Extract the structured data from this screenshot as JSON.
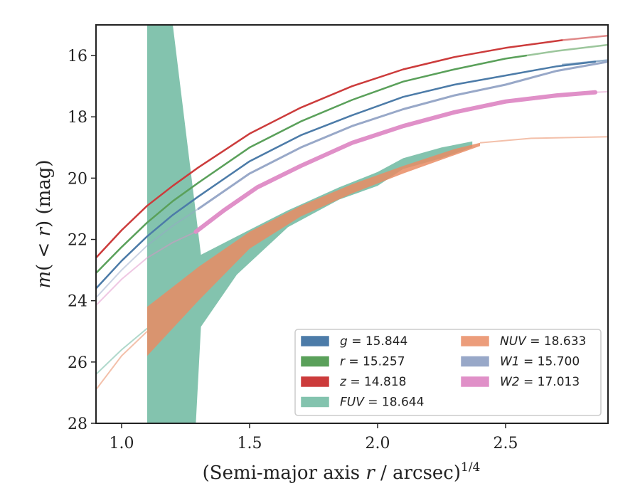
{
  "chart_data": {
    "type": "line",
    "xlabel": "(Semi-major axis r / arcsec)^{1/4}",
    "xlabel_parts": {
      "pre": "(Semi-major axis ",
      "italic": "r",
      "post": " / arcsec)",
      "sup": "1/4"
    },
    "ylabel": "m(<r) (mag)",
    "ylabel_parts": {
      "m": "m",
      "open": "(",
      "lt": " < ",
      "r": "r",
      "close": ")",
      "unit": " (mag)"
    },
    "xlim": [
      0.9,
      2.9
    ],
    "ylim": [
      28,
      15
    ],
    "y_inverted": true,
    "x_ticks": [
      1.0,
      1.5,
      2.0,
      2.5
    ],
    "x_tick_labels": [
      "1.0",
      "1.5",
      "2.0",
      "2.5"
    ],
    "y_ticks": [
      16,
      18,
      20,
      22,
      24,
      26,
      28
    ],
    "y_tick_labels": [
      "16",
      "18",
      "20",
      "22",
      "24",
      "26",
      "28"
    ],
    "grid": false,
    "legend_position": "bottom-right",
    "legend_columns": 2,
    "series": [
      {
        "name": "g = 15.844",
        "legend_symbol": "g",
        "legend_value": "15.844",
        "color": "#4c7ba8",
        "kind": "line",
        "width": 2.5,
        "x": [
          0.9,
          1.0,
          1.1,
          1.2,
          1.3,
          1.5,
          1.7,
          1.9,
          2.1,
          2.3,
          2.5,
          2.7,
          2.85
        ],
        "y": [
          23.6,
          22.7,
          21.9,
          21.2,
          20.6,
          19.45,
          18.6,
          17.95,
          17.35,
          16.95,
          16.65,
          16.35,
          16.2
        ],
        "faded_from": 2.72,
        "x_ext": [
          2.72,
          2.9
        ],
        "y_ext": [
          16.3,
          16.15
        ]
      },
      {
        "name": "r = 15.257",
        "legend_symbol": "r",
        "legend_value": "15.257",
        "color": "#5aa05a",
        "kind": "line",
        "width": 2.5,
        "x": [
          0.9,
          1.0,
          1.1,
          1.2,
          1.3,
          1.5,
          1.7,
          1.9,
          2.1,
          2.3,
          2.5,
          2.58
        ],
        "y": [
          23.1,
          22.25,
          21.45,
          20.75,
          20.15,
          19.0,
          18.15,
          17.45,
          16.85,
          16.45,
          16.1,
          16.0
        ],
        "faded_from": 2.58,
        "x_ext": [
          2.58,
          2.7,
          2.9
        ],
        "y_ext": [
          16.0,
          15.85,
          15.65
        ]
      },
      {
        "name": "z = 14.818",
        "legend_symbol": "z",
        "legend_value": "14.818",
        "color": "#cc3b3b",
        "kind": "line",
        "width": 2.5,
        "x": [
          0.9,
          1.0,
          1.1,
          1.2,
          1.3,
          1.5,
          1.7,
          1.9,
          2.1,
          2.3,
          2.5,
          2.72
        ],
        "y": [
          22.6,
          21.7,
          20.9,
          20.25,
          19.65,
          18.55,
          17.7,
          17.0,
          16.45,
          16.05,
          15.75,
          15.5
        ],
        "faded_from": 2.72,
        "x_ext": [
          2.72,
          2.9
        ],
        "y_ext": [
          15.5,
          15.35
        ]
      },
      {
        "name": "FUV = 18.644",
        "legend_symbol": "FUV",
        "legend_value": "18.644",
        "color": "#6db8a0",
        "kind": "band",
        "opacity": 0.85,
        "x_upper": [
          1.1,
          1.1,
          1.2,
          1.31,
          1.45,
          1.65,
          1.85,
          2.0,
          2.1,
          2.25,
          2.37
        ],
        "y_upper": [
          15.0,
          15.0,
          15.0,
          22.5,
          21.9,
          21.05,
          20.3,
          19.8,
          19.35,
          19.0,
          18.8
        ],
        "x_lower": [
          2.37,
          2.25,
          2.1,
          2.0,
          1.85,
          1.65,
          1.45,
          1.31,
          1.29,
          1.1
        ],
        "y_lower": [
          19.0,
          19.35,
          19.7,
          20.25,
          20.7,
          21.6,
          23.15,
          24.85,
          28.0,
          28.0
        ],
        "faded_x": [
          0.9,
          1.0,
          1.1
        ],
        "faded_y": [
          26.4,
          25.6,
          24.9
        ]
      },
      {
        "name": "NUV = 18.633",
        "legend_symbol": "NUV",
        "legend_value": "18.633",
        "color": "#e98c64",
        "kind": "band",
        "opacity": 0.85,
        "x_upper": [
          1.1,
          1.3,
          1.5,
          1.7,
          1.9,
          2.1,
          2.3,
          2.4
        ],
        "y_upper": [
          24.2,
          22.9,
          21.75,
          20.9,
          20.2,
          19.6,
          19.05,
          18.85
        ],
        "x_lower": [
          2.4,
          2.3,
          2.1,
          1.9,
          1.7,
          1.5,
          1.3,
          1.1
        ],
        "y_lower": [
          18.95,
          19.25,
          19.85,
          20.5,
          21.25,
          22.3,
          24.0,
          25.8
        ],
        "faded_x": [
          0.9,
          1.0,
          1.1,
          2.4,
          2.6,
          2.9
        ],
        "faded_y": [
          26.9,
          25.8,
          25.0,
          18.85,
          18.7,
          18.65
        ],
        "faded_split": 3
      },
      {
        "name": "W1 = 15.700",
        "legend_symbol": "W1",
        "legend_value": "15.700",
        "color": "#98a8c8",
        "kind": "line",
        "width": 3,
        "x": [
          1.3,
          1.5,
          1.7,
          1.9,
          2.1,
          2.3,
          2.5,
          2.7,
          2.9
        ],
        "y": [
          21.0,
          19.85,
          19.0,
          18.3,
          17.75,
          17.3,
          16.95,
          16.5,
          16.2
        ],
        "faded_x": [
          0.9,
          1.0,
          1.1,
          1.2,
          1.3
        ],
        "faded_y": [
          23.9,
          23.0,
          22.2,
          21.55,
          21.0
        ]
      },
      {
        "name": "W2 = 17.013",
        "legend_symbol": "W2",
        "legend_value": "17.013",
        "color": "#e090c8",
        "kind": "line",
        "width": 6,
        "x": [
          1.29,
          1.4,
          1.53,
          1.7,
          1.9,
          2.1,
          2.3,
          2.5,
          2.7,
          2.85
        ],
        "y": [
          21.75,
          21.05,
          20.3,
          19.6,
          18.85,
          18.3,
          17.85,
          17.5,
          17.3,
          17.2
        ],
        "faded_x": [
          0.9,
          1.0,
          1.1,
          1.2,
          1.29,
          2.85,
          2.9
        ],
        "faded_y": [
          24.15,
          23.3,
          22.6,
          22.1,
          21.75,
          17.2,
          17.18
        ],
        "faded_split": 5
      }
    ]
  }
}
